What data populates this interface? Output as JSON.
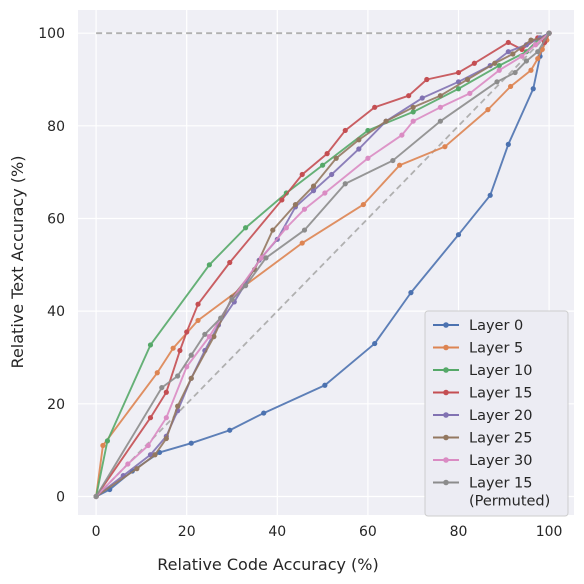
{
  "chart_data": {
    "type": "line",
    "title": "",
    "xlabel": "Relative Code Accuracy (%)",
    "ylabel": "Relative Text Accuracy (%)",
    "xlim": [
      -4,
      105.5
    ],
    "ylim": [
      -4,
      105
    ],
    "xticks": [
      0,
      20,
      40,
      60,
      80,
      100
    ],
    "yticks": [
      0,
      20,
      40,
      60,
      80,
      100
    ],
    "grid": true,
    "legend_position": "bottom-right",
    "reference_lines": [
      {
        "style": "dashed",
        "color": "#b0b0b0",
        "x": [
          0,
          100
        ],
        "y": [
          100,
          100
        ]
      },
      {
        "style": "dashed",
        "color": "#b0b0b0",
        "x": [
          0,
          100
        ],
        "y": [
          0,
          100
        ]
      }
    ],
    "series": [
      {
        "name": "Layer 0",
        "color": "#4c72b0",
        "x": [
          0,
          3,
          8,
          14,
          21,
          29.5,
          37,
          50.5,
          61.5,
          69.5,
          80,
          87,
          91,
          96.5,
          98,
          99,
          100
        ],
        "y": [
          0,
          1.5,
          5.5,
          9.5,
          11.5,
          14.3,
          18,
          24,
          33,
          44,
          56.5,
          65,
          76,
          88,
          95,
          98,
          100
        ]
      },
      {
        "name": "Layer 5",
        "color": "#dd8452",
        "x": [
          0,
          1.5,
          13.5,
          17,
          22.5,
          45.5,
          59,
          67,
          77,
          86.5,
          91.5,
          96,
          97.5,
          98.5,
          99.5,
          100
        ],
        "y": [
          0,
          11,
          26.7,
          32,
          38,
          54.7,
          63,
          71.5,
          75.5,
          83.5,
          88.5,
          92,
          94.5,
          96.5,
          98.5,
          100
        ]
      },
      {
        "name": "Layer 10",
        "color": "#55a868",
        "x": [
          0,
          2.5,
          12,
          25,
          33,
          42,
          50,
          60,
          70,
          80,
          89,
          95,
          98,
          100
        ],
        "y": [
          0,
          12,
          32.7,
          50,
          58,
          65.5,
          71.5,
          79,
          83,
          88,
          93,
          96,
          99,
          100
        ],
        "marker_from": 1
      },
      {
        "name": "Layer 15",
        "color": "#c44e52",
        "x": [
          0,
          12,
          15.5,
          18.5,
          20,
          22.5,
          29.5,
          41,
          45.5,
          51,
          55,
          61.5,
          69,
          73,
          80,
          83.5,
          91,
          94,
          97.5,
          99,
          100
        ],
        "y": [
          0,
          17,
          22.5,
          31.5,
          35.5,
          41.5,
          50.5,
          64,
          69.5,
          74,
          79,
          84,
          86.5,
          90,
          91.5,
          93.5,
          98,
          96.5,
          99,
          98,
          100
        ],
        "marker_from": 1
      },
      {
        "name": "Layer 20",
        "color": "#8172b2",
        "x": [
          0,
          6,
          12,
          15.5,
          18,
          21,
          24,
          27,
          30.5,
          33,
          36,
          40,
          44,
          48,
          52,
          58,
          64,
          72,
          80,
          87,
          91,
          95,
          98,
          100
        ],
        "y": [
          0,
          4.5,
          9,
          13,
          18.5,
          25.5,
          31.5,
          37,
          42,
          46,
          51,
          55.5,
          62.5,
          66,
          69.5,
          75,
          81,
          86,
          89.5,
          93,
          96,
          97.5,
          99,
          100
        ],
        "marker_from": 1
      },
      {
        "name": "Layer 25",
        "color": "#937860",
        "x": [
          0,
          9,
          13,
          15.5,
          18,
          21,
          26,
          30,
          35,
          39,
          44,
          48,
          53,
          58,
          64,
          70,
          76,
          82,
          88,
          92,
          96,
          99,
          100
        ],
        "y": [
          0,
          6,
          9,
          12.5,
          19.5,
          25.5,
          34.5,
          43,
          49,
          57.5,
          63,
          67,
          73,
          77,
          81,
          84,
          86.5,
          90,
          93.5,
          95.5,
          98.5,
          99,
          100
        ],
        "marker_from": 1
      },
      {
        "name": "Layer 30",
        "color": "#da8bc3",
        "x": [
          0,
          7,
          11.5,
          15.5,
          20,
          25,
          30,
          36.5,
          42,
          46,
          50.5,
          60,
          67.5,
          70,
          76,
          82.5,
          89,
          94,
          97,
          100
        ],
        "y": [
          0,
          7,
          11,
          17,
          28,
          34.5,
          42.5,
          51.5,
          58,
          62,
          65.5,
          73,
          78,
          81,
          84,
          87,
          92,
          95,
          97.5,
          100
        ],
        "marker_from": 1
      },
      {
        "name": "Layer 15\n(Permuted)",
        "color": "#8c8c8c",
        "x": [
          0,
          14.5,
          18,
          21,
          24,
          27.5,
          30,
          33,
          37.5,
          46,
          55,
          65.5,
          76,
          88.5,
          92.5,
          95,
          97.5,
          100
        ],
        "y": [
          0,
          23.5,
          26,
          30.5,
          35,
          38.5,
          42.5,
          45.5,
          51.5,
          57.5,
          67.5,
          72.5,
          81,
          89.5,
          91.5,
          94,
          96,
          100
        ],
        "marker_from": 1
      }
    ]
  }
}
